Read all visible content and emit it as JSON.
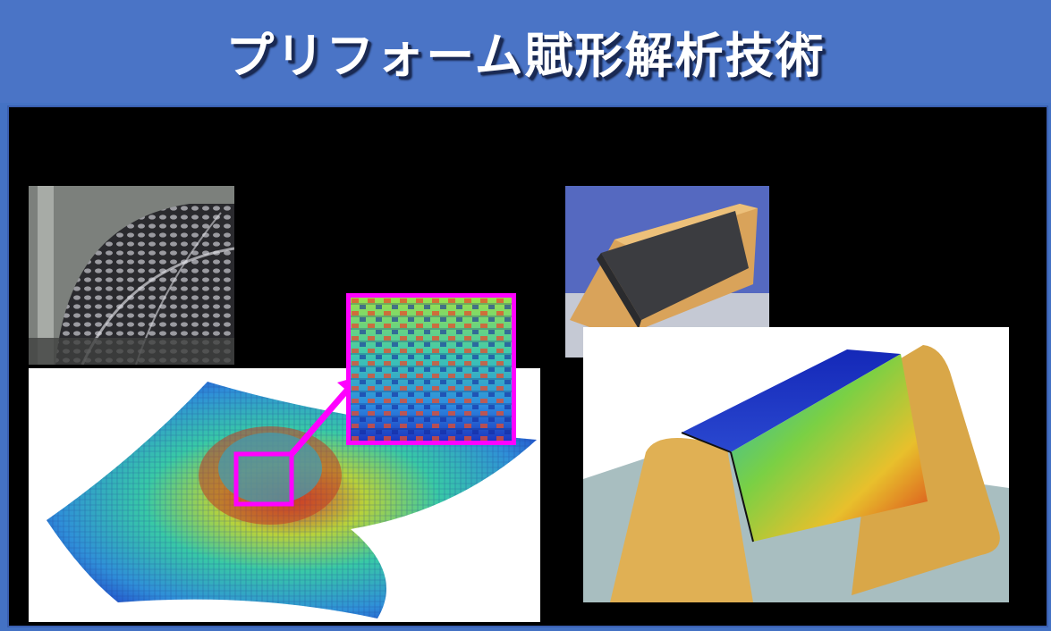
{
  "header": {
    "title": "プリフォーム賦形解析技術"
  },
  "colors": {
    "header_bg": "#4a74c6",
    "highlight": "#ff00ff",
    "panel_bg": "#000000"
  },
  "figures": {
    "photo_dome": "carbon-fabric-dome-photo",
    "sim_dome": "fabric-draping-simulation",
    "zoom": "weave-zoom-inset",
    "photo_mold": "fabric-on-wooden-mold-photo",
    "sim_mold": "mold-draping-simulation"
  }
}
